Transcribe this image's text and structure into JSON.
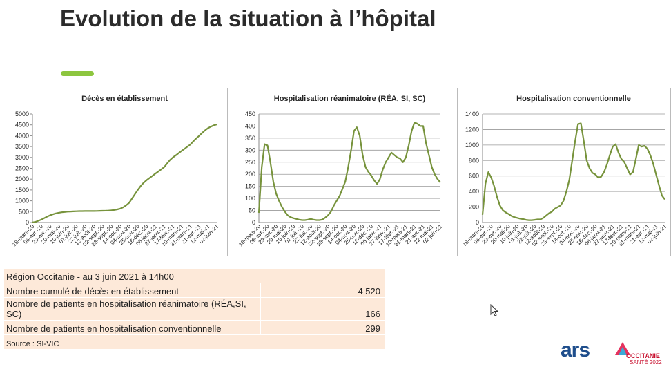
{
  "header": {
    "title": "Evolution de la situation à l’hôpital"
  },
  "chart_data": [
    {
      "type": "line",
      "title": "Décès en établissement",
      "grid": false,
      "color": "#77933c",
      "categories": [
        "18-mars-20",
        null,
        null,
        "08-avr.-20",
        null,
        null,
        "29-avr.-20",
        null,
        null,
        "20-mai-20",
        null,
        null,
        "10-juin-20",
        null,
        null,
        "01-juil.-20",
        null,
        null,
        "22-juil.-20",
        null,
        null,
        "12-août-20",
        null,
        null,
        "02-sept.-20",
        null,
        null,
        "23-sept.-20",
        null,
        null,
        "14-oct.-20",
        null,
        null,
        "04-nov.-20",
        null,
        null,
        "25-nov.-20",
        null,
        null,
        "16-déc.-20",
        null,
        null,
        "06-janv.-21",
        null,
        null,
        "27-janv.-21",
        null,
        null,
        "17-févr.-21",
        null,
        null,
        "10-mars-21",
        null,
        null,
        "31-mars-21",
        null,
        null,
        "21-avr.-21",
        null,
        null,
        "12-mai-21",
        null,
        null,
        "02-juin-21"
      ],
      "values": [
        0,
        30,
        80,
        130,
        200,
        270,
        330,
        380,
        420,
        450,
        470,
        485,
        500,
        507,
        513,
        520,
        524,
        527,
        530,
        530,
        530,
        530,
        533,
        537,
        540,
        545,
        552,
        560,
        580,
        605,
        640,
        700,
        790,
        900,
        1100,
        1300,
        1500,
        1680,
        1830,
        1950,
        2050,
        2150,
        2250,
        2350,
        2450,
        2550,
        2720,
        2880,
        3000,
        3100,
        3200,
        3300,
        3400,
        3500,
        3600,
        3750,
        3880,
        4000,
        4130,
        4250,
        4350,
        4420,
        4480,
        4520
      ],
      "ylim": [
        0,
        5000
      ],
      "yticks": [
        0,
        500,
        1000,
        1500,
        2000,
        2500,
        3000,
        3500,
        4000,
        4500,
        5000
      ]
    },
    {
      "type": "line",
      "title": "Hospitalisation réanimatoire (RÉA, SI, SC)",
      "grid": true,
      "color": "#77933c",
      "categories": [
        "18-mars-20",
        null,
        null,
        "08-avr.-20",
        null,
        null,
        "29-avr.-20",
        null,
        null,
        "20-mai-20",
        null,
        null,
        "10-juin-20",
        null,
        null,
        "01-juil.-20",
        null,
        null,
        "22-juil.-20",
        null,
        null,
        "12-août-20",
        null,
        null,
        "02-sept.-20",
        null,
        null,
        "23-sept.-20",
        null,
        null,
        "14-oct.-20",
        null,
        null,
        "04-nov.-20",
        null,
        null,
        "25-nov.-20",
        null,
        null,
        "16-déc.-20",
        null,
        null,
        "06-janv.-21",
        null,
        null,
        "27-janv.-21",
        null,
        null,
        "17-févr.-21",
        null,
        null,
        "10-mars-21",
        null,
        null,
        "31-mars-21",
        null,
        null,
        "21-avr.-21",
        null,
        null,
        "12-mai-21",
        null,
        null,
        "02-juin-21"
      ],
      "values": [
        40,
        230,
        325,
        320,
        250,
        170,
        120,
        90,
        65,
        45,
        30,
        22,
        18,
        15,
        12,
        10,
        10,
        12,
        15,
        12,
        10,
        10,
        12,
        20,
        30,
        45,
        70,
        90,
        110,
        140,
        170,
        230,
        300,
        380,
        395,
        360,
        280,
        230,
        210,
        195,
        175,
        160,
        180,
        220,
        250,
        270,
        290,
        280,
        270,
        265,
        250,
        270,
        320,
        380,
        415,
        410,
        400,
        400,
        330,
        280,
        230,
        200,
        180,
        166
      ],
      "ylim": [
        0,
        450
      ],
      "yticks": [
        0,
        50,
        100,
        150,
        200,
        250,
        300,
        350,
        400,
        450
      ]
    },
    {
      "type": "line",
      "title": "Hospitalisation conventionnelle",
      "grid": true,
      "color": "#77933c",
      "categories": [
        "18-mars-20",
        null,
        null,
        "08-avr.-20",
        null,
        null,
        "29-avr.-20",
        null,
        null,
        "20-mai-20",
        null,
        null,
        "10-juin-20",
        null,
        null,
        "01-juil.-20",
        null,
        null,
        "22-juil.-20",
        null,
        null,
        "12-août-20",
        null,
        null,
        "02-sept.-20",
        null,
        null,
        "23-sept.-20",
        null,
        null,
        "14-oct.-20",
        null,
        null,
        "04-nov.-20",
        null,
        null,
        "25-nov.-20",
        null,
        null,
        "16-déc.-20",
        null,
        null,
        "06-janv.-21",
        null,
        null,
        "27-janv.-21",
        null,
        null,
        "17-févr.-21",
        null,
        null,
        "10-mars-21",
        null,
        null,
        "31-mars-21",
        null,
        null,
        "21-avr.-21",
        null,
        null,
        "12-mai-21",
        null,
        null,
        "02-juin-21"
      ],
      "values": [
        100,
        500,
        650,
        580,
        470,
        330,
        220,
        160,
        130,
        110,
        85,
        70,
        60,
        50,
        45,
        35,
        30,
        30,
        35,
        40,
        40,
        60,
        90,
        120,
        140,
        180,
        200,
        220,
        280,
        400,
        550,
        800,
        1050,
        1270,
        1280,
        1050,
        800,
        700,
        640,
        620,
        580,
        590,
        650,
        750,
        870,
        980,
        1010,
        900,
        820,
        780,
        700,
        620,
        650,
        820,
        1000,
        980,
        990,
        950,
        870,
        760,
        620,
        480,
        350,
        299
      ],
      "ylim": [
        0,
        1400
      ],
      "yticks": [
        0,
        200,
        400,
        600,
        800,
        1000,
        1200,
        1400
      ]
    }
  ],
  "table": {
    "rows": [
      [
        "Région Occitanie - au 3 juin 2021 à 14h00"
      ],
      [
        "Nombre cumulé de décès en établissement",
        "4 520"
      ],
      [
        "Nombre de patients en hospitalisation réanimatoire (RÉA,SI, SC)",
        "166"
      ],
      [
        "Nombre de patients en hospitalisation conventionnelle",
        "299"
      ],
      [
        "Source : SI-VIC"
      ]
    ]
  },
  "logos": {
    "ars": "ars",
    "region": "OCCITANIE",
    "sante": "SANTÉ 2022"
  }
}
